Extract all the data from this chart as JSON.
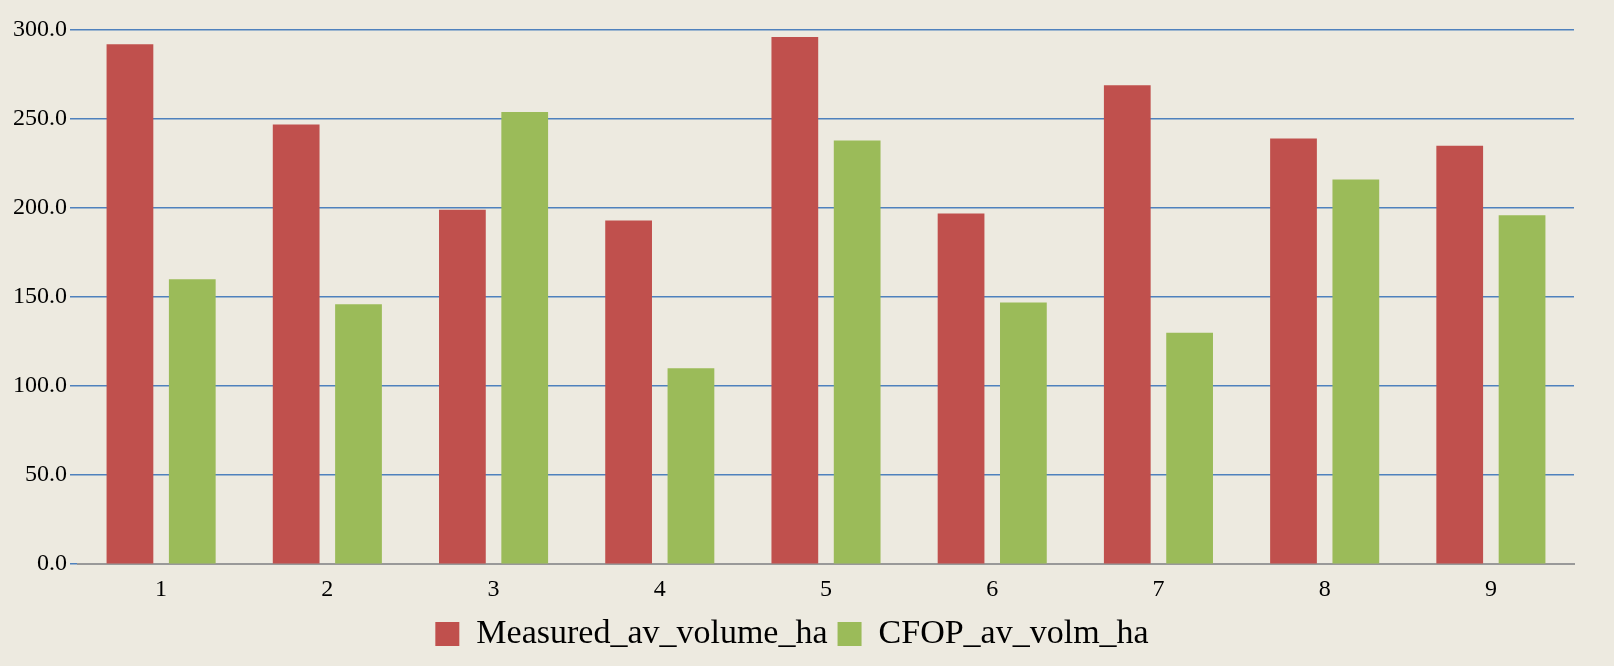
{
  "chart_data": {
    "type": "bar",
    "categories": [
      "1",
      "2",
      "3",
      "4",
      "5",
      "6",
      "7",
      "8",
      "9"
    ],
    "series": [
      {
        "name": "Measured_av_volume_ha",
        "color": "#c0504d",
        "values": [
          292,
          247,
          199,
          193,
          296,
          197,
          269,
          239,
          235
        ]
      },
      {
        "name": "CFOP_av_volm_ha",
        "color": "#9bbb59",
        "values": [
          160,
          146,
          254,
          110,
          238,
          147,
          130,
          216,
          196
        ]
      }
    ],
    "ylim": [
      0,
      300
    ],
    "yticks": [
      {
        "value": 0,
        "label": "0.0"
      },
      {
        "value": 50,
        "label": "50.0"
      },
      {
        "value": 100,
        "label": "100.0"
      },
      {
        "value": 150,
        "label": "150.0"
      },
      {
        "value": 200,
        "label": "200.0"
      },
      {
        "value": 250,
        "label": "250.0"
      },
      {
        "value": 300,
        "label": "300.0"
      }
    ],
    "grid": "y",
    "legend": "bottom"
  }
}
